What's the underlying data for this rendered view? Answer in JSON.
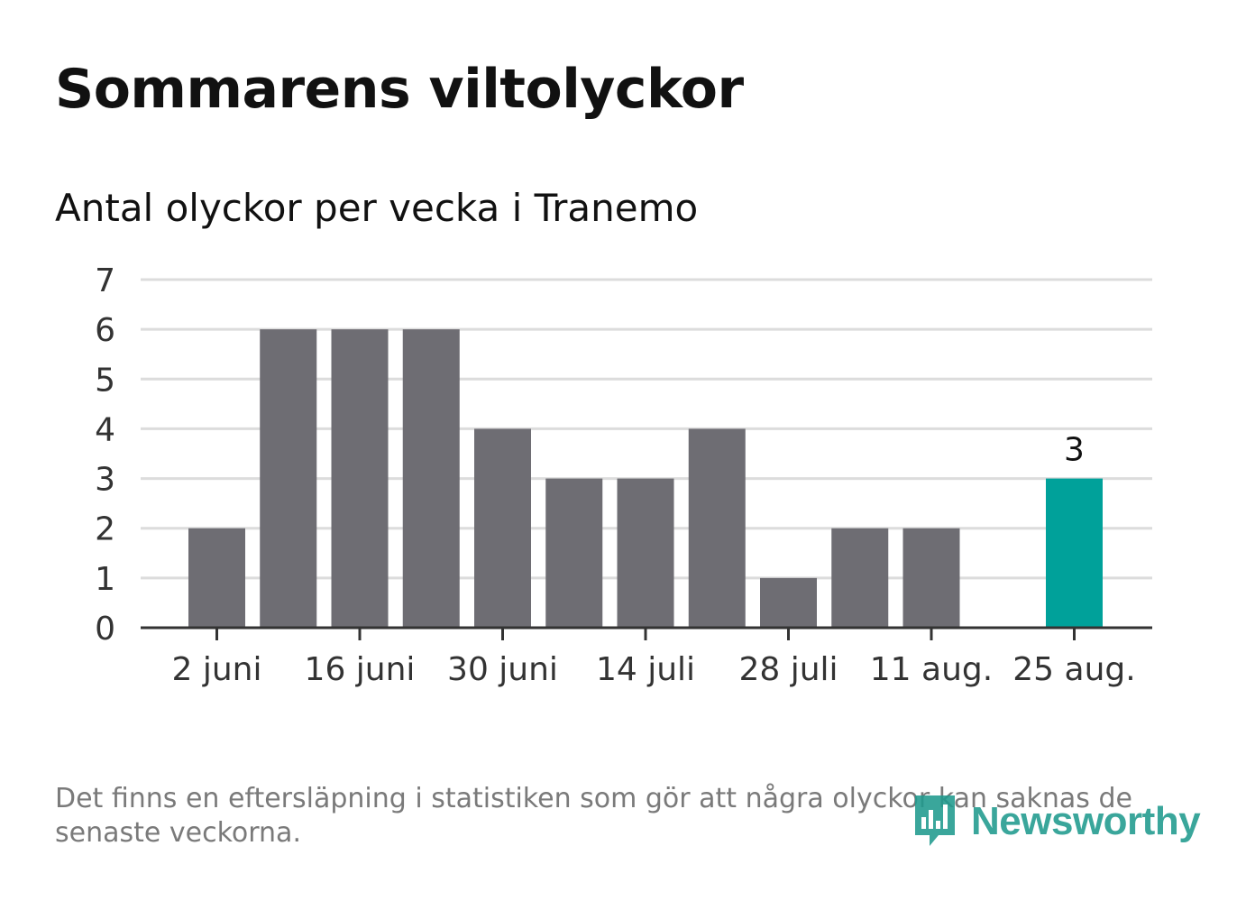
{
  "header": {
    "title": "Sommarens viltolyckor",
    "subtitle": "Antal olyckor per vecka i Tranemo"
  },
  "chart_data": {
    "type": "bar",
    "title": "Sommarens viltolyckor",
    "subtitle": "Antal olyckor per vecka i Tranemo",
    "xlabel": "",
    "ylabel": "",
    "ylim": [
      0,
      7
    ],
    "yticks": [
      0,
      1,
      2,
      3,
      4,
      5,
      6,
      7
    ],
    "x_tick_labels": [
      "2 juni",
      "16 juni",
      "30 juni",
      "14 juli",
      "28 juli",
      "11 aug.",
      "25 aug."
    ],
    "x_tick_label_bar_index": [
      0,
      2,
      4,
      6,
      8,
      10,
      12
    ],
    "values": [
      2,
      6,
      6,
      6,
      4,
      3,
      3,
      4,
      1,
      2,
      2,
      null,
      3
    ],
    "highlight_index": 12,
    "highlight_label": "3",
    "grid": true,
    "colors": {
      "bar": "#6e6d73",
      "highlight": "#00a19a",
      "grid": "#dcdcdc",
      "axis": "#333333"
    }
  },
  "footer": {
    "note": "Det finns en eftersläpning i statistiken som gör att några olyckor kan saknas de senaste veckorna.",
    "logo_text": "Newsworthy",
    "logo_icon": "newsworthy-chart-icon"
  }
}
